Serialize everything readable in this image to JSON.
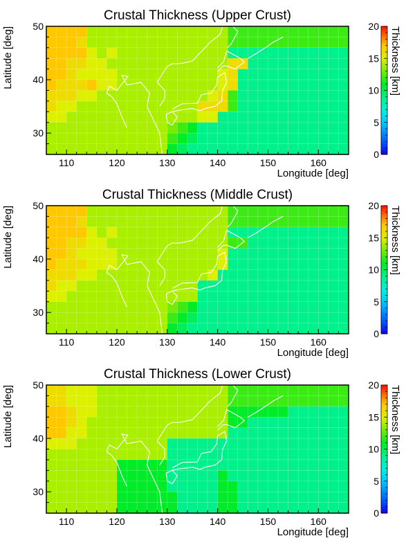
{
  "chart_data": [
    {
      "type": "heatmap",
      "title": "Crustal Thickness (Upper Crust)",
      "xlabel": "Longitude [deg]",
      "ylabel": "Latitude [deg]",
      "xlim": [
        106,
        166
      ],
      "ylim": [
        26,
        50
      ],
      "xticks": [
        110,
        120,
        130,
        140,
        150,
        160
      ],
      "yticks": [
        30,
        40,
        50
      ],
      "colorbar": {
        "label": "Thickness [km]",
        "range": [
          0,
          20
        ],
        "ticks": [
          0,
          5,
          10,
          15,
          20
        ]
      },
      "cell_size_deg": 2,
      "grid": [
        "17,17,17,17,14,14,14,14,14,14,14,14,14,14,14,14,14,14,12,12,12,12,12,12,12,12,12,12,12,12",
        "17,17,17,16,14,14,14,14,14,14,14,14,14,14,14,14,14,14,12,12,12,12,12,12,12,12,12,12,12,12",
        "17,17,17,17,15,14,15,14,14,14,14,14,14,14,14,14,14,14,9,9,9,9,9,9,9,9,9,9,9,9",
        "17,17,16,16,15,15,14,14,14,14,14,14,14,14,14,14,14,14,16,16,9,9,9,9,9,9,9,9,9,9",
        "17,17,16,15,15,15,15,14,14,14,14,14,14,14,14,14,14,15,16,9,9,9,9,9,9,9,9,9,9,9",
        "17,16,16,16,17,15,15,14,14,14,14,14,14,14,14,14,14,15,16,9,9,9,9,9,9,9,9,9,9,9",
        "16,16,16,15,15,14,14,14,14,14,14,14,14,14,14,14,15,16,12,9,9,9,9,9,9,9,9,9,9,9",
        "16,15,15,14,14,14,14,14,14,14,14,14,14,14,14,16,16,16,12,9,9,9,9,9,9,9,9,9,9,9",
        "15,15,14,14,14,14,14,14,14,14,14,14,14,14,14,15,15,9,9,9,9,9,9,9,9,9,9,9,9,9",
        "14,14,14,14,14,14,14,14,14,14,14,14,13,12,11,9,9,9,9,9,9,9,9,9,9,9,9,9,9,9",
        "14,14,14,14,14,14,14,14,14,14,14,14,12,11,10,9,9,9,9,9,9,9,9,9,9,9,9,9,9,9",
        "14,14,14,14,14,14,14,14,14,14,14,14,11,10,9,9,9,9,9,9,9,9,9,9,9,9,9,9,9,9"
      ]
    },
    {
      "type": "heatmap",
      "title": "Crustal Thickness (Middle Crust)",
      "xlabel": "Longitude [deg]",
      "ylabel": "Latitude [deg]",
      "xlim": [
        106,
        166
      ],
      "ylim": [
        26,
        50
      ],
      "xticks": [
        110,
        120,
        130,
        140,
        150,
        160
      ],
      "yticks": [
        30,
        40,
        50
      ],
      "colorbar": {
        "label": "Thickness [km]",
        "range": [
          0,
          20
        ],
        "ticks": [
          0,
          5,
          10,
          15,
          20
        ]
      },
      "cell_size_deg": 2,
      "grid": [
        "17,17,17,17,14,14,14,14,14,14,14,14,14,14,14,14,14,14,12,12,12,12,12,12,12,12,12,12,12,12",
        "17,17,17,16,14,14,14,14,14,14,14,14,14,14,14,14,14,14,12,12,12,12,12,12,12,12,12,12,12,12",
        "17,17,17,17,15,14,15,14,14,14,14,14,14,14,14,14,14,14,9,9,9,9,9,9,9,9,9,9,9,9",
        "17,17,16,16,15,15,14,14,14,14,14,14,14,14,14,14,14,14,12,12,9,9,9,9,9,9,9,9,9,9",
        "17,17,16,15,15,15,15,14,14,14,14,14,14,14,14,14,14,15,9,9,9,9,9,9,9,9,9,9,9,9",
        "17,16,16,16,15,15,15,14,14,14,14,14,14,14,14,14,14,15,9,9,9,9,9,9,9,9,9,9,9,9",
        "16,16,16,15,15,14,14,14,14,14,14,14,14,14,14,14,15,9,9,9,9,9,9,9,9,9,9,9,9,9",
        "16,15,15,14,14,14,14,14,14,14,14,14,14,14,14,9,9,9,9,9,9,9,9,9,9,9,9,9,9,9",
        "15,15,14,14,14,14,14,14,14,14,14,14,14,14,14,9,9,9,9,9,9,9,9,9,9,9,9,9,9,9",
        "14,14,14,14,14,14,14,14,14,14,14,14,13,12,11,9,9,9,9,9,9,9,9,9,9,9,9,9,9,9",
        "14,14,14,14,14,14,14,14,14,14,14,14,12,11,10,9,9,9,9,9,9,9,9,9,9,9,9,9,9,9",
        "14,14,14,14,14,14,14,14,14,14,14,14,11,10,9,9,9,9,9,9,9,9,9,9,9,9,9,9,9,9"
      ]
    },
    {
      "type": "heatmap",
      "title": "Crustal Thickness (Lower Crust)",
      "xlabel": "Longitude [deg]",
      "ylabel": "Latitude [deg]",
      "xlim": [
        106,
        166
      ],
      "ylim": [
        26,
        50
      ],
      "xticks": [
        110,
        120,
        130,
        140,
        150,
        160
      ],
      "yticks": [
        30,
        40,
        50
      ],
      "colorbar": {
        "label": "Thickness [km]",
        "range": [
          0,
          20
        ],
        "ticks": [
          0,
          5,
          10,
          15,
          20
        ]
      },
      "cell_size_deg": 2,
      "grid": [
        "16,16,15,15,15,14,14,14,14,14,14,14,14,14,14,14,14,14,12,12,12,12,12,12,12,12,12,12,12,12",
        "16,16,15,15,15,14,14,14,14,14,14,14,14,14,14,14,14,14,12,12,12,12,12,12,12,12,12,12,12,12",
        "17,17,16,15,15,14,14,14,14,14,14,14,14,14,14,14,14,14,11,11,11,11,11,11,9,9,9,9,9,9",
        "17,17,16,15,14,14,14,14,14,14,14,14,14,14,14,14,14,14,11,11,9,9,9,9,9,9,9,9,9,9",
        "17,17,15,15,14,14,14,14,14,14,14,14,14,14,14,14,14,14,9,9,9,9,9,9,9,9,9,9,9,9",
        "15,15,15,14,14,14,14,14,14,14,14,14,9,9,9,9,9,9,9,9,9,9,9,9,9,9,9,9,9,9",
        "14,14,14,14,14,14,14,14,14,14,14,14,9,9,9,9,9,9,9,9,9,9,9,9,9,9,9,9,9,9",
        "14,14,14,14,14,14,14,11,11,11,11,11,9,9,9,9,9,9,9,9,9,9,9,9,9,9,9,9,9,9",
        "14,14,14,14,14,14,14,11,11,11,11,11,9,9,9,9,9,11,9,9,9,9,9,9,9,9,9,9,9,9",
        "14,14,14,14,14,14,14,11,11,11,11,11,9,9,9,9,9,11,11,9,9,9,9,9,9,9,9,9,9,9",
        "14,14,14,14,14,14,14,11,11,11,11,11,11,9,9,9,9,11,11,9,9,9,9,9,9,9,9,9,9,9",
        "14,14,14,14,14,14,14,11,11,11,11,11,11,9,9,9,9,11,11,9,9,9,9,9,9,9,9,9,9,9"
      ]
    }
  ]
}
